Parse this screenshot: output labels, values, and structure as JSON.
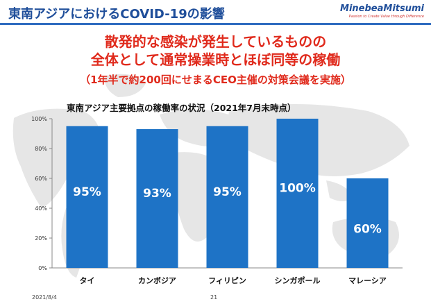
{
  "header": {
    "title": "東南アジアにおけるCOVID-19の影響",
    "logo": "MinebeaMitsumi",
    "logo_tagline": "Passion to Create Value through Difference"
  },
  "headline": {
    "line1": "散発的な感染が発生しているものの",
    "line2": "全体として通常操業時とほぼ同等の稼働",
    "line3": "（1年半で約200回にせまるCEO主催の対策会議を実施）"
  },
  "colors": {
    "header_blue": "#1f4e9a",
    "accent_red": "#e02a1c",
    "bar_blue": "#1e73c6"
  },
  "chart_data": {
    "type": "bar",
    "title": "東南アジア主要拠点の稼働率の状況（2021年7月末時点）",
    "categories": [
      "タイ",
      "カンボジア",
      "フィリピン",
      "シンガポール",
      "マレーシア"
    ],
    "values": [
      95,
      93,
      95,
      100,
      60
    ],
    "data_labels": [
      "95%",
      "93%",
      "95%",
      "100%",
      "60%"
    ],
    "yticks": [
      "0%",
      "20%",
      "40%",
      "60%",
      "80%",
      "100%"
    ],
    "ylim": [
      0,
      100
    ],
    "grid": false,
    "legend": "none"
  },
  "footer": {
    "date": "2021/8/4",
    "page": "21"
  }
}
